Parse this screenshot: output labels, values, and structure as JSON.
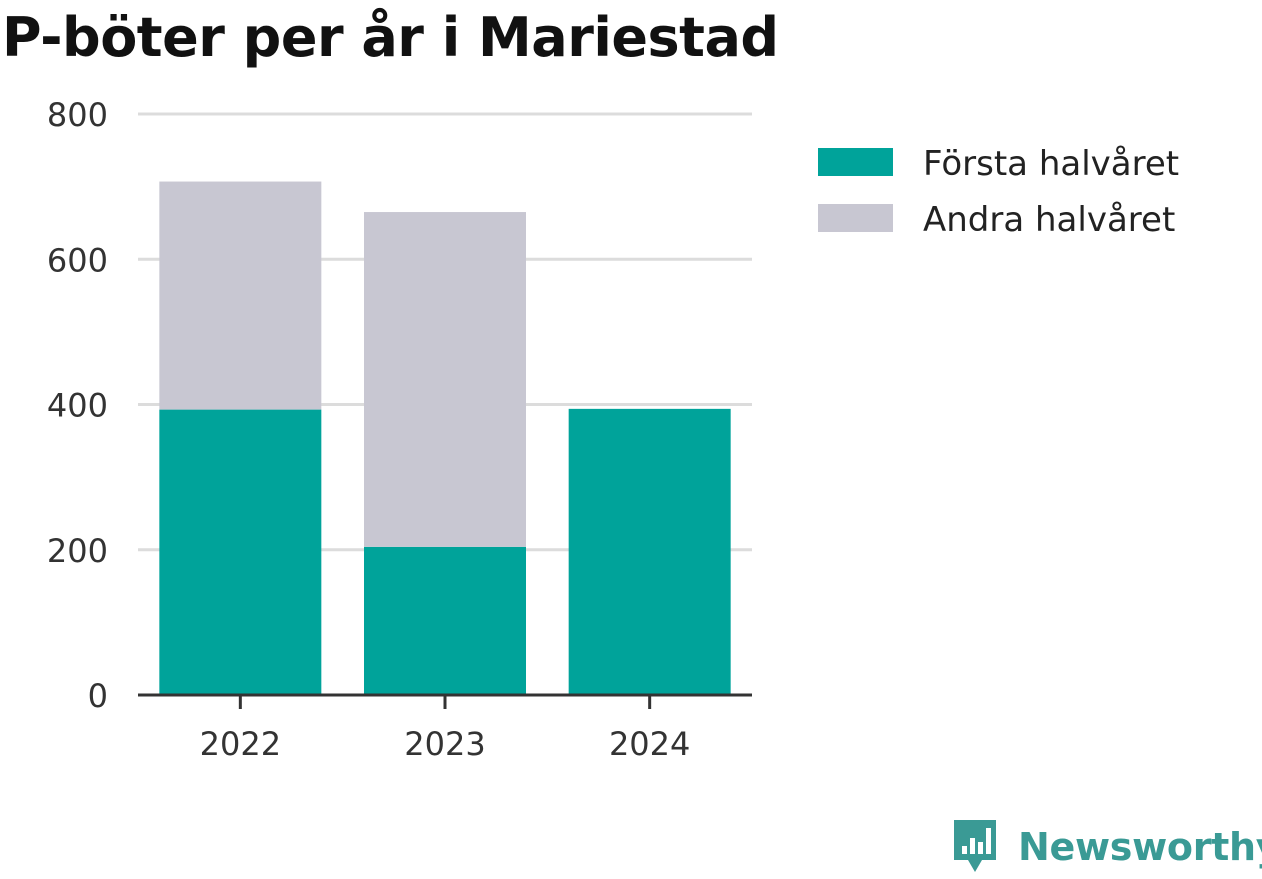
{
  "title": "P-böter per år i Mariestad",
  "brand": "Newsworthy",
  "colors": {
    "first": "#00a39a",
    "second": "#c8c7d2",
    "grid": "#dcdcdc",
    "axis": "#333333",
    "brand": "#3a9a95"
  },
  "chart_data": {
    "type": "bar",
    "stacked": true,
    "title": "P-böter per år i Mariestad",
    "categories": [
      "2022",
      "2023",
      "2024"
    ],
    "series": [
      {
        "name": "Första halvåret",
        "values": [
          393,
          204,
          394
        ]
      },
      {
        "name": "Andra halvåret",
        "values": [
          314,
          461,
          null
        ]
      }
    ],
    "xlabel": "",
    "ylabel": "",
    "ylim": [
      0,
      800
    ],
    "yticks": [
      0,
      200,
      400,
      600,
      800
    ],
    "grid": true,
    "legend": "top-right"
  }
}
